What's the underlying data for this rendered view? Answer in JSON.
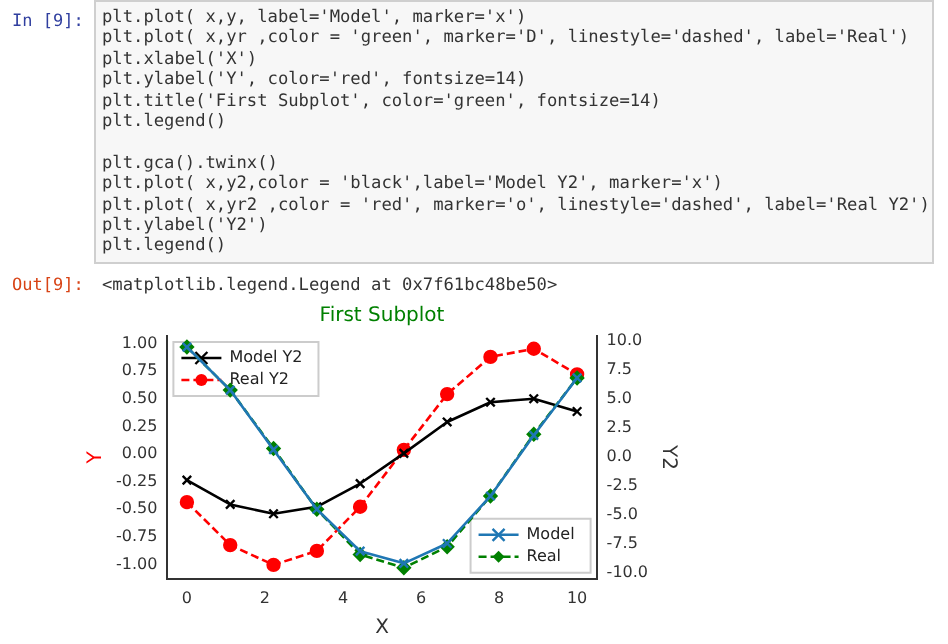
{
  "chart_data": {
    "type": "line",
    "title": "First Subplot",
    "xlabel": "X",
    "ylabel": "Y",
    "y2label": "Y2",
    "annotations": [
      "In [9]:",
      "plt.plot( x,y, label='Model', marker='x')\nplt.plot( x,yr ,color = 'green', marker='D', linestyle='dashed', label='Real')\nplt.xlabel('X')\nplt.ylabel('Y', color='red', fontsize=14)\nplt.title('First Subplot', color='green', fontsize=14)\nplt.legend()\n\nplt.gca().twinx()\nplt.plot( x,y2,color = 'black',label='Model Y2', marker='x')\nplt.plot( x,yr2 ,color = 'red', marker='o', linestyle='dashed', label='Real Y2')\nplt.ylabel('Y2')\nplt.legend()",
      "Out[9]:",
      "<matplotlib.legend.Legend at 0x7f61bc48be50>"
    ],
    "x": [
      0,
      1.11,
      2.22,
      3.33,
      4.44,
      5.56,
      6.67,
      7.78,
      8.89,
      10
    ],
    "series": [
      {
        "name": "Model",
        "color": "#1f77b4",
        "marker": "cross",
        "line_style": "solid",
        "values": [
          0.97,
          0.58,
          0.04,
          -0.5,
          -0.88,
          -0.99,
          -0.81,
          -0.38,
          0.17,
          0.69
        ]
      },
      {
        "name": "Real",
        "color": "#008000",
        "marker": "diamond",
        "line_style": "dashed",
        "values": [
          0.97,
          0.58,
          0.05,
          -0.5,
          -0.91,
          -1.03,
          -0.84,
          -0.38,
          0.18,
          0.69
        ]
      },
      {
        "name": "Model Y2",
        "color": "#000000",
        "marker": "cross",
        "line_style": "solid",
        "axis": "y2",
        "values": [
          -2.0,
          -4.1,
          -4.9,
          -4.3,
          -2.3,
          0.3,
          3.0,
          4.7,
          5.0,
          3.9
        ]
      },
      {
        "name": "Real Y2",
        "color": "#ff0000",
        "marker": "circle",
        "line_style": "dashed",
        "axis": "y2",
        "values": [
          -3.9,
          -7.6,
          -9.3,
          -8.1,
          -4.3,
          0.6,
          5.4,
          8.6,
          9.3,
          7.1
        ]
      }
    ],
    "xlim": [
      -0.5,
      10.5
    ],
    "xticks": [
      0,
      2,
      4,
      6,
      8,
      10
    ],
    "ylim": [
      -1.13,
      1.07
    ],
    "yticks": [
      {
        "value": -1,
        "label": "-1.00"
      },
      {
        "value": -0.75,
        "label": "-0.75"
      },
      {
        "value": -0.5,
        "label": "-0.50"
      },
      {
        "value": -0.25,
        "label": "-0.25"
      },
      {
        "value": 0,
        "label": "0.00"
      },
      {
        "value": 0.25,
        "label": "0.25"
      },
      {
        "value": 0.5,
        "label": "0.50"
      },
      {
        "value": 0.75,
        "label": "0.75"
      },
      {
        "value": 1,
        "label": "1.00"
      }
    ],
    "y2lim": [
      -10.5,
      10.4
    ],
    "y2ticks": [
      {
        "value": -10,
        "label": "-10.0"
      },
      {
        "value": -7.5,
        "label": "-7.5"
      },
      {
        "value": -5,
        "label": "-5.0"
      },
      {
        "value": -2.5,
        "label": "-2.5"
      },
      {
        "value": 0,
        "label": "0.0"
      },
      {
        "value": 2.5,
        "label": "2.5"
      },
      {
        "value": 5,
        "label": "5.0"
      },
      {
        "value": 7.5,
        "label": "7.5"
      },
      {
        "value": 10,
        "label": "10.0"
      }
    ],
    "legend": "top left"
  }
}
